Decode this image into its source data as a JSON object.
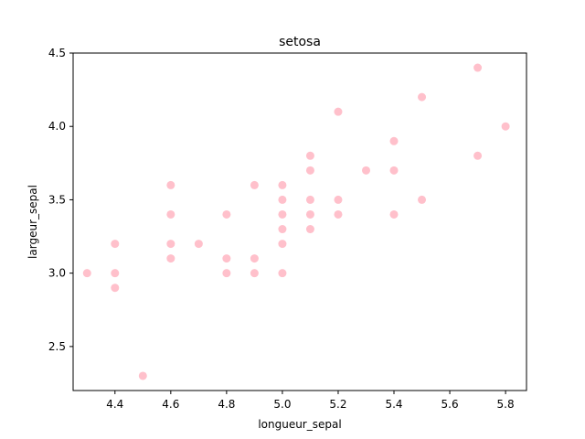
{
  "chart_data": {
    "type": "scatter",
    "title": "setosa",
    "xlabel": "longueur_sepal",
    "ylabel": "largeur_sepal",
    "xlim": [
      4.25,
      5.875
    ],
    "ylim": [
      2.2,
      4.5
    ],
    "xticks": [
      4.4,
      4.6,
      4.8,
      5.0,
      5.2,
      5.4,
      5.6,
      5.8
    ],
    "xtick_labels": [
      "4.4",
      "4.6",
      "4.8",
      "5.0",
      "5.2",
      "5.4",
      "5.6",
      "5.8"
    ],
    "yticks": [
      2.5,
      3.0,
      3.5,
      4.0,
      4.5
    ],
    "ytick_labels": [
      "2.5",
      "3.0",
      "3.5",
      "4.0",
      "4.5"
    ],
    "grid": false,
    "marker_color": "#ffc0cb",
    "points": [
      {
        "x": 4.3,
        "y": 3.0
      },
      {
        "x": 4.4,
        "y": 3.2
      },
      {
        "x": 4.4,
        "y": 3.0
      },
      {
        "x": 4.4,
        "y": 2.9
      },
      {
        "x": 4.5,
        "y": 2.3
      },
      {
        "x": 4.6,
        "y": 3.6
      },
      {
        "x": 4.6,
        "y": 3.4
      },
      {
        "x": 4.6,
        "y": 3.2
      },
      {
        "x": 4.6,
        "y": 3.1
      },
      {
        "x": 4.7,
        "y": 3.2
      },
      {
        "x": 4.8,
        "y": 3.4
      },
      {
        "x": 4.8,
        "y": 3.1
      },
      {
        "x": 4.8,
        "y": 3.0
      },
      {
        "x": 4.9,
        "y": 3.6
      },
      {
        "x": 4.9,
        "y": 3.1
      },
      {
        "x": 4.9,
        "y": 3.0
      },
      {
        "x": 5.0,
        "y": 3.6
      },
      {
        "x": 5.0,
        "y": 3.5
      },
      {
        "x": 5.0,
        "y": 3.4
      },
      {
        "x": 5.0,
        "y": 3.3
      },
      {
        "x": 5.0,
        "y": 3.2
      },
      {
        "x": 5.0,
        "y": 3.0
      },
      {
        "x": 5.1,
        "y": 3.8
      },
      {
        "x": 5.1,
        "y": 3.7
      },
      {
        "x": 5.1,
        "y": 3.5
      },
      {
        "x": 5.1,
        "y": 3.4
      },
      {
        "x": 5.1,
        "y": 3.3
      },
      {
        "x": 5.2,
        "y": 4.1
      },
      {
        "x": 5.2,
        "y": 3.5
      },
      {
        "x": 5.2,
        "y": 3.4
      },
      {
        "x": 5.3,
        "y": 3.7
      },
      {
        "x": 5.4,
        "y": 3.9
      },
      {
        "x": 5.4,
        "y": 3.7
      },
      {
        "x": 5.4,
        "y": 3.4
      },
      {
        "x": 5.5,
        "y": 4.2
      },
      {
        "x": 5.5,
        "y": 3.5
      },
      {
        "x": 5.7,
        "y": 4.4
      },
      {
        "x": 5.7,
        "y": 3.8
      },
      {
        "x": 5.8,
        "y": 4.0
      }
    ]
  }
}
